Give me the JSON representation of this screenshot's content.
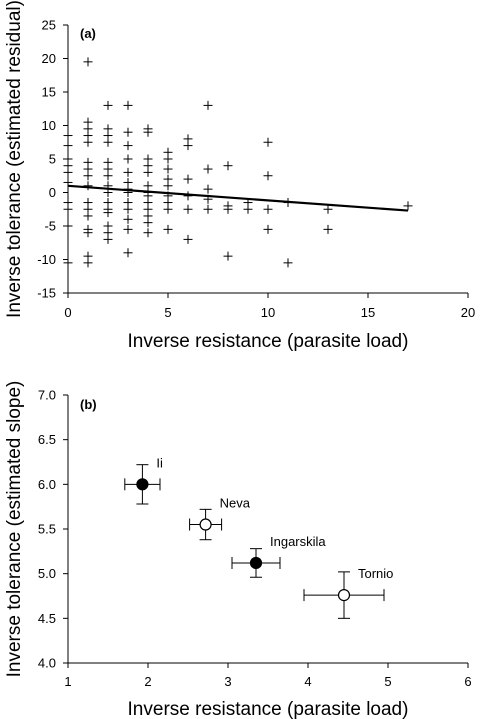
{
  "chart_data": [
    {
      "type": "scatter",
      "panel_label": "(a)",
      "xlabel": "Inverse resistance (parasite load)",
      "ylabel": "Inverse tolerance (estimated residual)",
      "xlim": [
        0,
        20
      ],
      "ylim": [
        -15,
        25
      ],
      "xticks": [
        0,
        5,
        10,
        15,
        20
      ],
      "yticks": [
        -15,
        -10,
        -5,
        0,
        5,
        10,
        15,
        20,
        25
      ],
      "marker": "plus",
      "points": [
        [
          0,
          8.5
        ],
        [
          0,
          7.0
        ],
        [
          0,
          5.0
        ],
        [
          0,
          4.0
        ],
        [
          0,
          3.0
        ],
        [
          0,
          1.5
        ],
        [
          0,
          -1.5
        ],
        [
          0,
          -2.5
        ],
        [
          0,
          -5.0
        ],
        [
          0,
          -10.5
        ],
        [
          1,
          19.5
        ],
        [
          1,
          10.5
        ],
        [
          1,
          9.5
        ],
        [
          1,
          8.5
        ],
        [
          1,
          7.5
        ],
        [
          1,
          4.5
        ],
        [
          1,
          3.5
        ],
        [
          1,
          2.5
        ],
        [
          1,
          1.0
        ],
        [
          1,
          -1.5
        ],
        [
          1,
          -2.5
        ],
        [
          1,
          -3.5
        ],
        [
          1,
          -5.5
        ],
        [
          1,
          -6.0
        ],
        [
          1,
          -9.5
        ],
        [
          1,
          -10.5
        ],
        [
          2,
          13.0
        ],
        [
          2,
          9.5
        ],
        [
          2,
          8.5
        ],
        [
          2,
          7.5
        ],
        [
          2,
          4.5
        ],
        [
          2,
          3.5
        ],
        [
          2,
          2.5
        ],
        [
          2,
          1.0
        ],
        [
          2,
          0.0
        ],
        [
          2,
          -1.5
        ],
        [
          2,
          -2.5
        ],
        [
          2,
          -3.0
        ],
        [
          2,
          -5.0
        ],
        [
          2,
          -6.0
        ],
        [
          2,
          -7.0
        ],
        [
          3,
          13.0
        ],
        [
          3,
          9.0
        ],
        [
          3,
          7.0
        ],
        [
          3,
          5.0
        ],
        [
          3,
          3.0
        ],
        [
          3,
          1.5
        ],
        [
          3,
          0.5
        ],
        [
          3,
          0.0
        ],
        [
          3,
          -1.5
        ],
        [
          3,
          -2.5
        ],
        [
          3,
          -4.0
        ],
        [
          3,
          -5.5
        ],
        [
          3,
          -9.0
        ],
        [
          4,
          9.5
        ],
        [
          4,
          9.0
        ],
        [
          4,
          5.0
        ],
        [
          4,
          4.0
        ],
        [
          4,
          3.0
        ],
        [
          4,
          1.0
        ],
        [
          4,
          0.0
        ],
        [
          4,
          -0.5
        ],
        [
          4,
          -1.5
        ],
        [
          4,
          -2.5
        ],
        [
          4,
          -3.5
        ],
        [
          4,
          -4.5
        ],
        [
          4,
          -6.0
        ],
        [
          5,
          6.0
        ],
        [
          5,
          5.0
        ],
        [
          5,
          3.5
        ],
        [
          5,
          2.0
        ],
        [
          5,
          1.0
        ],
        [
          5,
          -0.5
        ],
        [
          5,
          -1.5
        ],
        [
          5,
          -2.5
        ],
        [
          5,
          -5.5
        ],
        [
          6,
          8.0
        ],
        [
          6,
          7.0
        ],
        [
          6,
          2.0
        ],
        [
          6,
          -0.5
        ],
        [
          6,
          -2.5
        ],
        [
          6,
          -7.0
        ],
        [
          7,
          13.0
        ],
        [
          7,
          3.5
        ],
        [
          7,
          0.5
        ],
        [
          7,
          -1.0
        ],
        [
          7,
          -2.5
        ],
        [
          8,
          4.0
        ],
        [
          8,
          -2.0
        ],
        [
          8,
          -2.5
        ],
        [
          8,
          -9.5
        ],
        [
          9,
          -1.5
        ],
        [
          9,
          -2.5
        ],
        [
          10,
          7.5
        ],
        [
          10,
          2.5
        ],
        [
          10,
          -2.5
        ],
        [
          10,
          -5.5
        ],
        [
          11,
          -1.5
        ],
        [
          11,
          -10.5
        ],
        [
          13,
          -2.5
        ],
        [
          13,
          -5.5
        ],
        [
          17,
          -2.0
        ]
      ],
      "fit_line": {
        "x": [
          0,
          17
        ],
        "y": [
          1.0,
          -2.7
        ]
      }
    },
    {
      "type": "scatter",
      "panel_label": "(b)",
      "xlabel": "Inverse resistance (parasite load)",
      "ylabel": "Inverse tolerance (estimated slope)",
      "xlim": [
        1,
        6
      ],
      "ylim": [
        4.0,
        7.0
      ],
      "xticks": [
        1,
        2,
        3,
        4,
        5,
        6
      ],
      "yticks": [
        "4.0",
        "4.5",
        "5.0",
        "5.5",
        "6.0",
        "6.5",
        "7.0"
      ],
      "points": [
        {
          "label": "Ii",
          "x": 1.93,
          "y": 6.0,
          "xerr": 0.22,
          "yerr": 0.22,
          "filled": true
        },
        {
          "label": "Neva",
          "x": 2.72,
          "y": 5.55,
          "xerr": 0.2,
          "yerr": 0.17,
          "filled": false
        },
        {
          "label": "Ingarskila",
          "x": 3.35,
          "y": 5.12,
          "xerr": 0.3,
          "yerr": 0.16,
          "filled": true
        },
        {
          "label": "Tornio",
          "x": 4.45,
          "y": 4.76,
          "xerr": 0.5,
          "yerr": 0.26,
          "filled": false
        }
      ]
    }
  ]
}
